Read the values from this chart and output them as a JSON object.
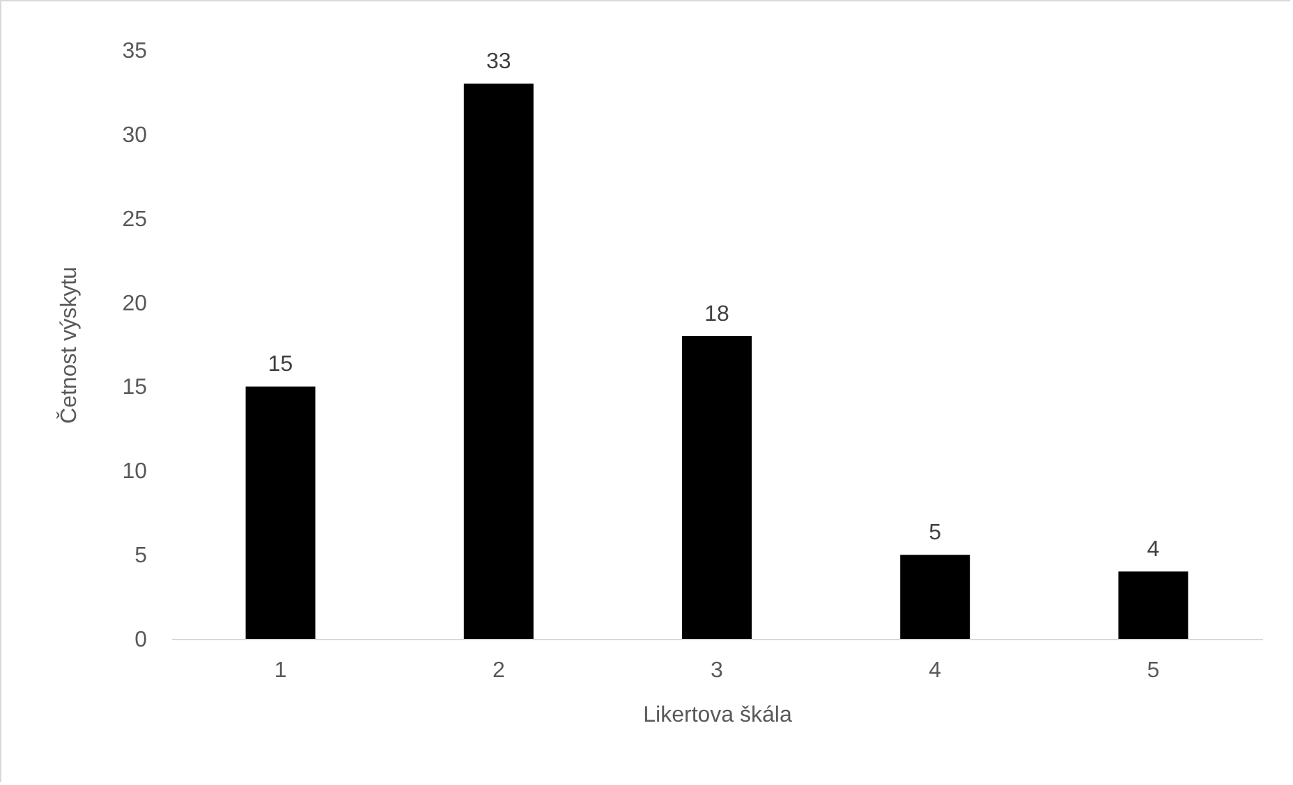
{
  "chart_data": {
    "type": "bar",
    "xlabel": "Likertova škála",
    "ylabel": "Četnost výskytu",
    "categories": [
      "1",
      "2",
      "3",
      "4",
      "5"
    ],
    "values": [
      15,
      33,
      18,
      5,
      4
    ],
    "color": "#000000",
    "ylim": [
      0,
      35
    ],
    "yticks": [
      0,
      5,
      10,
      15,
      20,
      25,
      30,
      35
    ],
    "grid": false,
    "data_labels": true
  }
}
